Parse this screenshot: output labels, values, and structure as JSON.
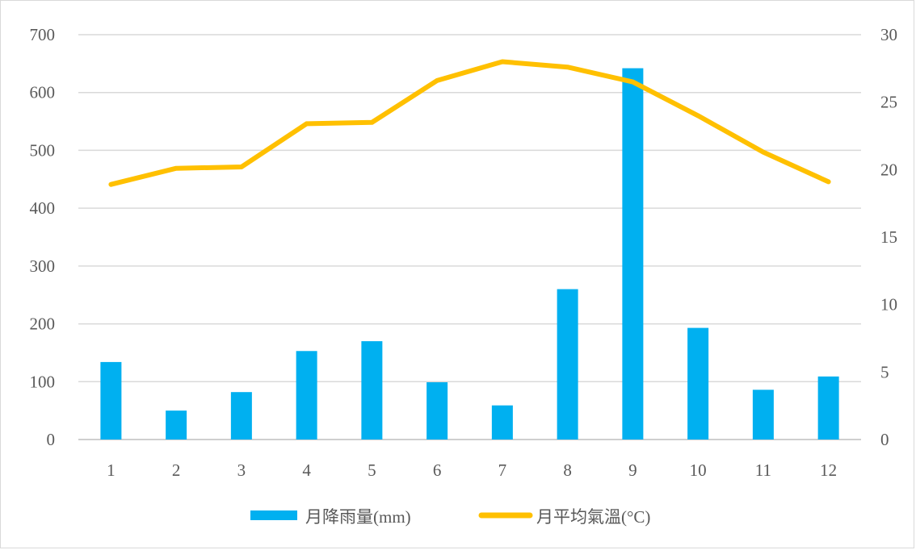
{
  "chart_data": {
    "type": "bar+line",
    "categories": [
      "1",
      "2",
      "3",
      "4",
      "5",
      "6",
      "7",
      "8",
      "9",
      "10",
      "11",
      "12"
    ],
    "series": [
      {
        "name": "月降雨量(mm)",
        "type": "bar",
        "axis": "left",
        "color": "#00b0f0",
        "values": [
          134,
          50,
          82,
          153,
          170,
          99,
          59,
          260,
          642,
          193,
          86,
          109
        ]
      },
      {
        "name": "月平均氣溫(°C)",
        "type": "line",
        "axis": "right",
        "color": "#ffc000",
        "values": [
          18.9,
          20.1,
          20.2,
          23.4,
          23.5,
          26.6,
          28.0,
          27.6,
          26.5,
          24.0,
          21.3,
          19.1
        ]
      }
    ],
    "y_left": {
      "min": 0,
      "max": 700,
      "ticks": [
        "0",
        "100",
        "200",
        "300",
        "400",
        "500",
        "600",
        "700"
      ]
    },
    "y_right": {
      "min": 0,
      "max": 30,
      "ticks": [
        "0",
        "5",
        "10",
        "15",
        "20",
        "25",
        "30"
      ]
    },
    "grid": true,
    "legend": "bottom"
  }
}
